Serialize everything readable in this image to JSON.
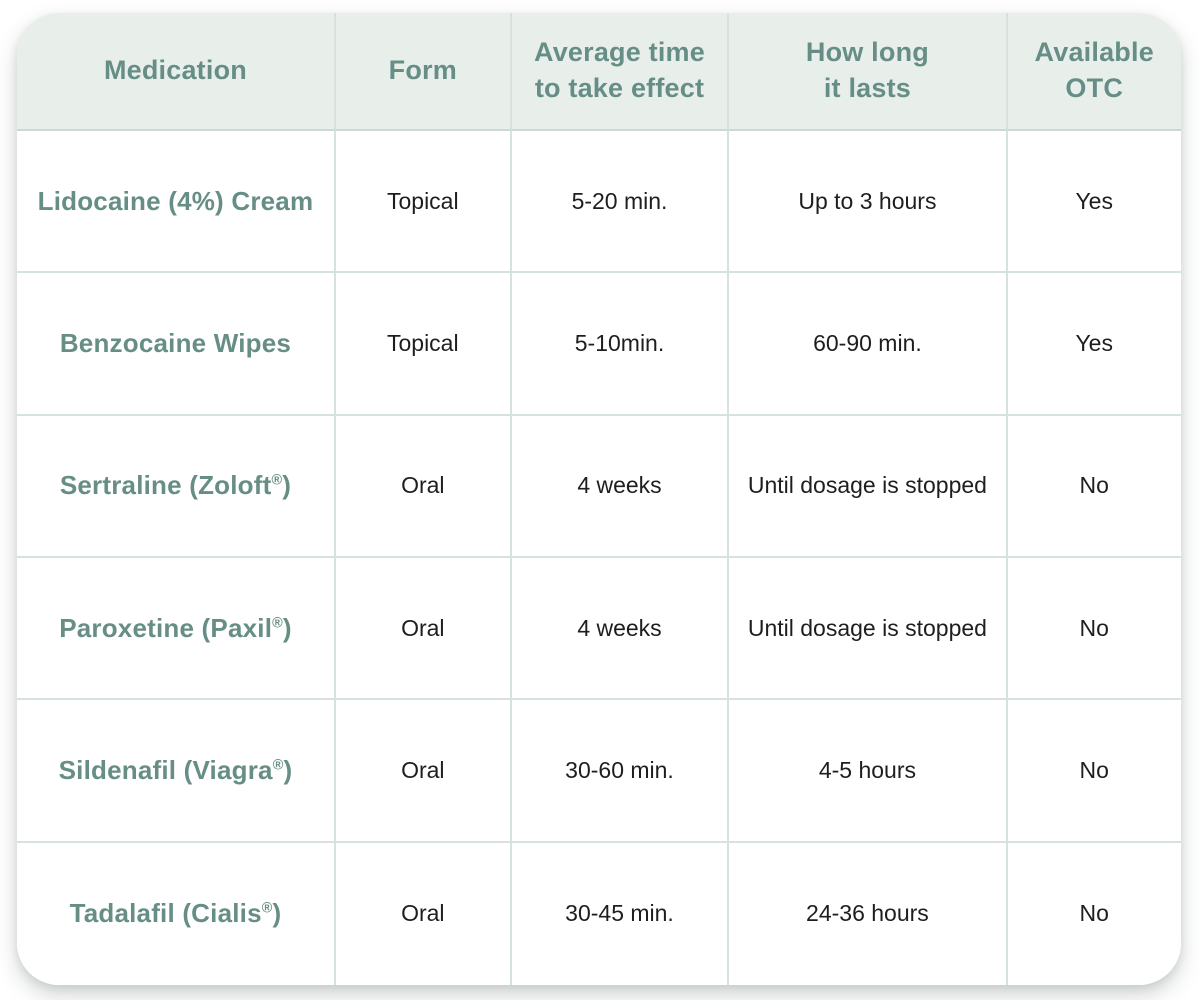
{
  "chart_data": {
    "type": "table",
    "title": "",
    "columns": [
      "Medication",
      "Form",
      "Average time to take effect",
      "How long it lasts",
      "Available OTC"
    ],
    "rows": [
      [
        "Lidocaine (4%) Cream",
        "Topical",
        "5-20 min.",
        "Up to 3 hours",
        "Yes"
      ],
      [
        "Benzocaine Wipes",
        "Topical",
        "5-10min.",
        "60-90 min.",
        "Yes"
      ],
      [
        "Sertraline (Zoloft®)",
        "Oral",
        "4 weeks",
        "Until dosage is stopped",
        "No"
      ],
      [
        "Paroxetine (Paxil®)",
        "Oral",
        "4 weeks",
        "Until dosage is stopped",
        "No"
      ],
      [
        "Sildenafil (Viagra®)",
        "Oral",
        "30-60 min.",
        "4-5 hours",
        "No"
      ],
      [
        "Tadalafil (Cialis®)",
        "Oral",
        "30-45 min.",
        "24-36 hours",
        "No"
      ]
    ]
  },
  "ui": {
    "header_lines": [
      {
        "line1": "Medication",
        "line2": ""
      },
      {
        "line1": "Form",
        "line2": ""
      },
      {
        "line1": "Average time",
        "line2": "to take effect"
      },
      {
        "line1": "How long",
        "line2": "it lasts"
      },
      {
        "line1": "Available",
        "line2": "OTC"
      }
    ],
    "medications": [
      {
        "pre": "Lidocaine (4%) Cream",
        "sup": "",
        "post": ""
      },
      {
        "pre": "Benzocaine Wipes",
        "sup": "",
        "post": ""
      },
      {
        "pre": "Sertraline (Zoloft",
        "sup": "®",
        "post": ")"
      },
      {
        "pre": "Paroxetine (Paxil",
        "sup": "®",
        "post": ")"
      },
      {
        "pre": "Sildenafil (Viagra",
        "sup": "®",
        "post": ")"
      },
      {
        "pre": "Tadalafil (Cialis",
        "sup": "®",
        "post": ")"
      }
    ],
    "colors": {
      "header_bg": "#e8efeb",
      "header_text": "#678e86",
      "medication_text": "#678e86",
      "body_text": "#1e1e1e",
      "grid_line": "#d6e2dd",
      "card_bg": "#ffffff"
    }
  }
}
